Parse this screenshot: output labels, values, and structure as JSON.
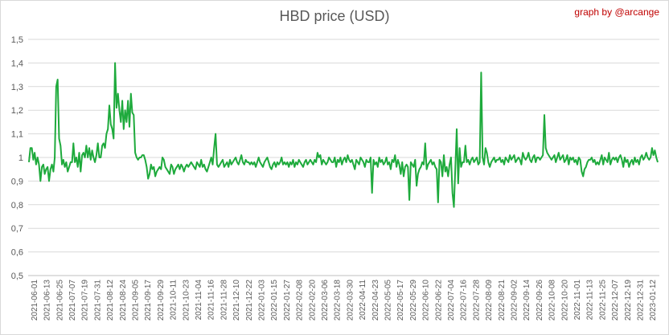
{
  "header": {
    "title": "HBD price (USD)",
    "credit": "graph by @arcange"
  },
  "chart_data": {
    "type": "line",
    "title": "HBD price (USD)",
    "xlabel": "",
    "ylabel": "",
    "ylim": [
      0.5,
      1.5
    ],
    "yticks": [
      "0,5",
      "0,6",
      "0,7",
      "0,8",
      "0,9",
      "1",
      "1,1",
      "1,2",
      "1,3",
      "1,4",
      "1,5"
    ],
    "grid": "horizontal",
    "legend": "none",
    "color": "#1eaa3c",
    "x_tick_labels": [
      "2021-06-01",
      "2021-06-13",
      "2021-06-25",
      "2021-07-07",
      "2021-07-19",
      "2021-07-31",
      "2021-08-12",
      "2021-08-24",
      "2021-09-05",
      "2021-09-17",
      "2021-09-29",
      "2021-10-11",
      "2021-10-23",
      "2021-11-04",
      "2021-11-16",
      "2021-11-28",
      "2021-12-10",
      "2021-12-22",
      "2022-01-03",
      "2022-01-15",
      "2022-01-27",
      "2022-02-08",
      "2022-02-20",
      "2022-03-06",
      "2022-03-18",
      "2022-03-30",
      "2022-04-11",
      "2022-04-23",
      "2022-05-05",
      "2022-05-17",
      "2022-05-29",
      "2022-06-10",
      "2022-06-22",
      "2022-07-04",
      "2022-07-16",
      "2022-07-28",
      "2022-08-09",
      "2022-08-21",
      "2022-09-02",
      "2022-09-14",
      "2022-09-26",
      "2022-10-08",
      "2022-10-20",
      "2022-11-01",
      "2022-11-13",
      "2022-11-25",
      "2022-12-07",
      "2022-12-19",
      "2022-12-31",
      "2023-01-12"
    ],
    "series": [
      {
        "values": [
          0.98,
          1.04,
          1.04,
          0.99,
          1.02,
          0.97,
          1.0,
          0.97,
          0.9,
          0.96,
          0.97,
          0.93,
          0.95,
          0.96,
          0.9,
          0.95,
          0.97,
          0.94,
          1.0,
          1.3,
          1.33,
          1.08,
          1.05,
          0.97,
          0.99,
          0.96,
          0.98,
          0.94,
          0.96,
          0.98,
          0.98,
          1.06,
          0.98,
          1.0,
          0.96,
          1.02,
          0.94,
          1.01,
          1.02,
          1.0,
          1.05,
          1.0,
          1.04,
          0.99,
          1.03,
          1.0,
          0.98,
          1.01,
          1.06,
          1.0,
          1.0,
          1.05,
          1.06,
          1.04,
          1.1,
          1.12,
          1.22,
          1.14,
          1.12,
          1.08,
          1.4,
          1.21,
          1.27,
          1.2,
          1.15,
          1.24,
          1.12,
          1.2,
          1.15,
          1.24,
          1.13,
          1.27,
          1.19,
          1.18,
          1.02,
          1.0,
          0.99,
          1.0,
          1.0,
          1.01,
          1.01,
          0.99,
          0.96,
          0.91,
          0.93,
          0.97,
          0.95,
          0.96,
          0.92,
          0.94,
          0.95,
          0.96,
          0.95,
          1.0,
          0.99,
          0.96,
          0.95,
          0.94,
          0.93,
          0.97,
          0.96,
          0.93,
          0.95,
          0.96,
          0.97,
          0.95,
          0.97,
          0.96,
          0.94,
          0.96,
          0.97,
          0.96,
          0.97,
          0.98,
          0.97,
          0.96,
          0.95,
          0.98,
          0.97,
          0.96,
          0.99,
          0.96,
          0.97,
          0.95,
          0.94,
          0.96,
          0.98,
          1.0,
          0.97,
          1.04,
          1.1,
          0.97,
          0.96,
          0.97,
          0.98,
          0.99,
          0.96,
          0.97,
          0.98,
          0.96,
          0.99,
          0.97,
          0.98,
          0.99,
          1.0,
          0.98,
          0.97,
          0.99,
          1.01,
          0.98,
          0.97,
          0.99,
          0.98,
          0.98,
          0.97,
          0.98,
          0.97,
          0.98,
          0.96,
          0.98,
          1.0,
          0.98,
          0.97,
          0.96,
          0.98,
          0.99,
          1.0,
          0.98,
          0.96,
          0.95,
          0.97,
          0.98,
          0.96,
          0.98,
          0.97,
          0.98,
          1.0,
          0.97,
          0.98,
          0.97,
          0.98,
          0.96,
          0.98,
          0.97,
          0.99,
          0.96,
          0.98,
          0.97,
          0.99,
          0.98,
          0.97,
          0.96,
          0.98,
          0.99,
          0.97,
          0.98,
          0.99,
          0.98,
          0.97,
          0.99,
          0.98,
          1.02,
          1.0,
          1.01,
          0.97,
          0.99,
          0.98,
          0.97,
          0.98,
          1.0,
          0.99,
          0.98,
          0.98,
          1.0,
          0.96,
          0.99,
          0.98,
          1.0,
          0.97,
          0.99,
          1.0,
          0.98,
          1.01,
          0.99,
          0.98,
          0.99,
          0.97,
          0.95,
          0.99,
          0.98,
          0.97,
          1.0,
          0.99,
          0.98,
          0.96,
          0.99,
          0.98,
          0.98,
          1.0,
          0.85,
          0.99,
          0.97,
          0.98,
          0.96,
          1.0,
          0.98,
          0.99,
          0.97,
          0.98,
          1.0,
          0.97,
          0.98,
          0.95,
          0.99,
          0.98,
          1.01,
          0.96,
          0.99,
          0.97,
          0.93,
          0.98,
          0.92,
          0.96,
          0.97,
          0.96,
          0.82,
          0.98,
          0.97,
          0.96,
          0.99,
          0.88,
          0.93,
          0.95,
          0.96,
          0.98,
          0.97,
          1.06,
          0.95,
          0.97,
          0.98,
          0.99,
          0.97,
          0.98,
          0.96,
          0.95,
          0.81,
          0.99,
          0.98,
          0.92,
          1.01,
          0.94,
          0.96,
          0.92,
          0.97,
          1.0,
          0.85,
          0.79,
          0.96,
          1.12,
          0.89,
          1.04,
          0.96,
          0.98,
          0.98,
          1.05,
          0.98,
          0.99,
          0.97,
          0.99,
          1.0,
          0.98,
          0.99,
          1.0,
          0.97,
          0.98,
          1.36,
          1.0,
          0.97,
          1.04,
          1.02,
          0.98,
          0.96,
          0.98,
          0.99,
          1.0,
          0.98,
          0.99,
          0.99,
          1.0,
          0.98,
          0.99,
          0.97,
          1.0,
          0.99,
          0.98,
          1.01,
          0.99,
          1.0,
          1.01,
          0.98,
          0.99,
          1.0,
          0.99,
          0.97,
          1.02,
          1.0,
          0.99,
          1.0,
          1.02,
          0.99,
          0.98,
          1.0,
          1.01,
          0.98,
          1.0,
          1.0,
          0.99,
          1.0,
          1.01,
          1.18,
          1.04,
          1.02,
          1.01,
          1.0,
          0.99,
          1.0,
          1.01,
          0.98,
          1.0,
          1.02,
          0.99,
          1.0,
          1.01,
          0.98,
          0.99,
          1.01,
          0.97,
          1.0,
          0.99,
          1.0,
          0.98,
          0.99,
          0.97,
          1.0,
          0.99,
          0.94,
          0.92,
          0.95,
          0.96,
          0.98,
          0.99,
          0.99,
          1.0,
          0.98,
          0.99,
          0.97,
          0.98,
          0.97,
          0.99,
          1.01,
          0.97,
          1.0,
          0.99,
          0.98,
          1.02,
          0.97,
          0.99,
          1.0,
          0.99,
          1.0,
          0.98,
          1.0,
          1.01,
          0.99,
          0.96,
          1.0,
          0.98,
          0.99,
          0.96,
          0.98,
          0.99,
          0.97,
          1.0,
          0.98,
          0.99,
          0.97,
          1.0,
          1.01,
          0.99,
          1.0,
          1.02,
          1.0,
          0.99,
          1.0,
          1.04,
          1.01,
          1.03,
          1.0,
          0.98
        ]
      }
    ]
  }
}
